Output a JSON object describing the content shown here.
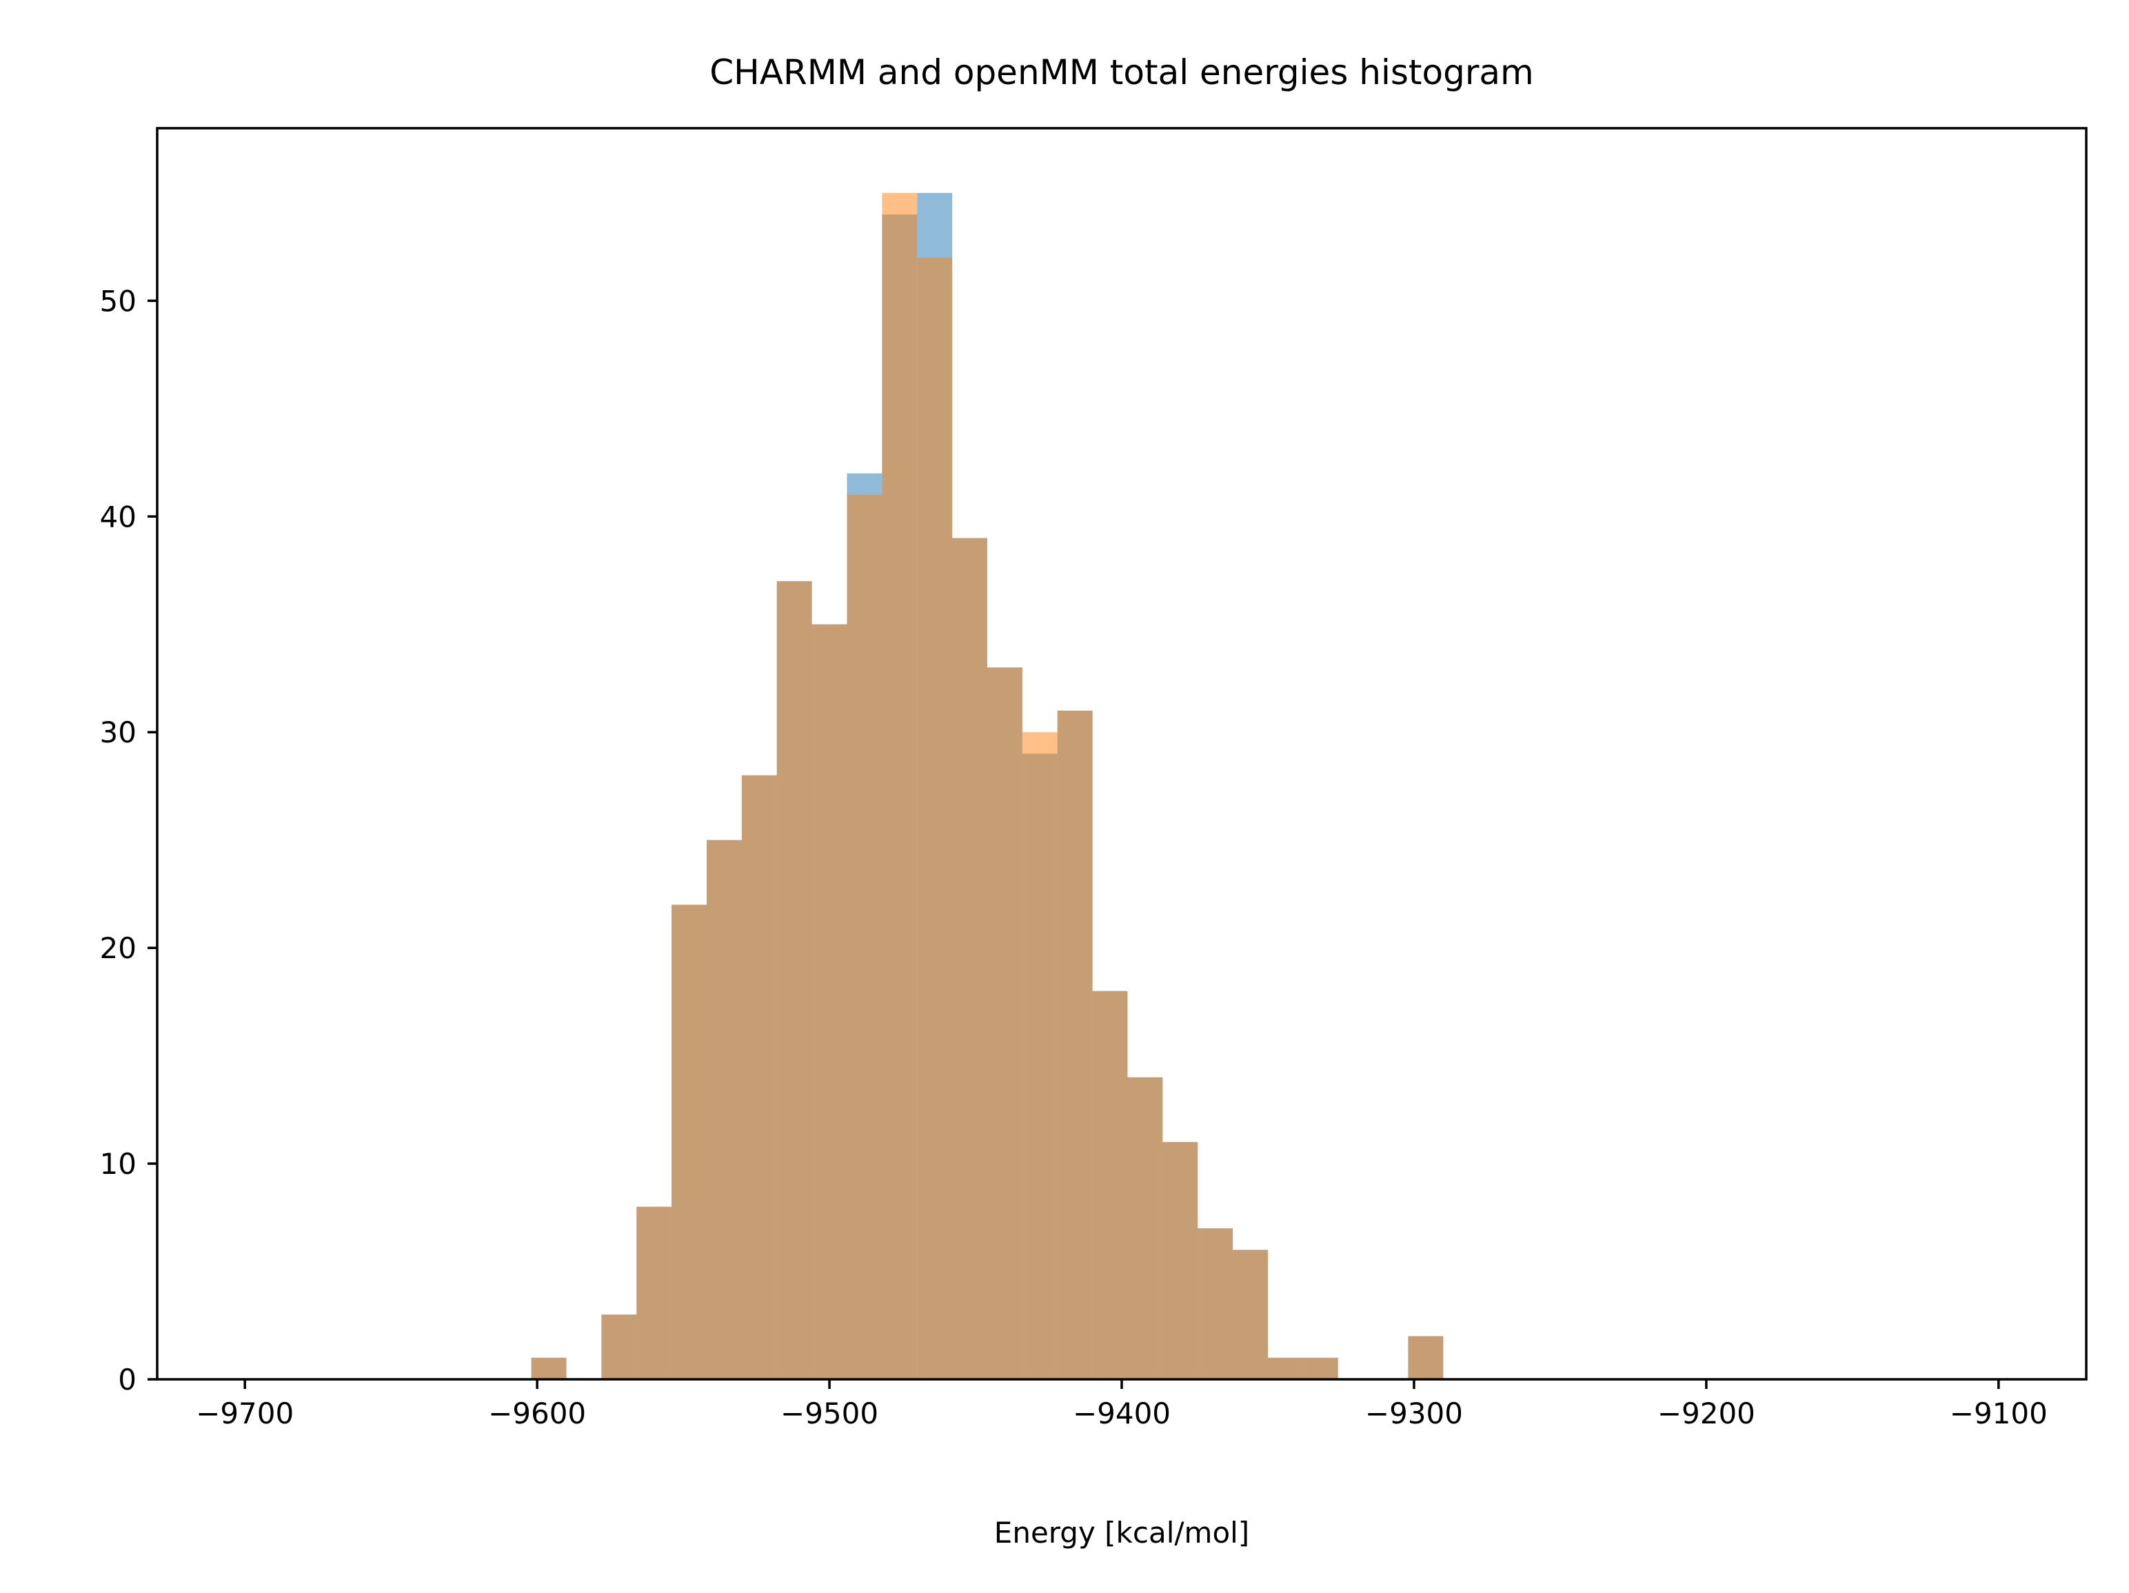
{
  "chart_data": {
    "type": "bar",
    "title": "CHARMM and openMM total energies histogram",
    "xlabel": "Energy [kcal/mol]",
    "ylabel": "",
    "xlim": [
      -9730,
      -9070
    ],
    "ylim": [
      0,
      58
    ],
    "xticks": [
      -9700,
      -9600,
      -9500,
      -9400,
      -9300,
      -9200,
      -9100
    ],
    "xtick_labels": [
      "−9700",
      "−9600",
      "−9500",
      "−9400",
      "−9300",
      "−9200",
      "−9100"
    ],
    "yticks": [
      0,
      10,
      20,
      30,
      40,
      50
    ],
    "ytick_labels": [
      "0",
      "10",
      "20",
      "30",
      "40",
      "50"
    ],
    "grid": false,
    "bin_edges": [
      -9602,
      -9590,
      -9578,
      -9566,
      -9554,
      -9542,
      -9530,
      -9518,
      -9506,
      -9494,
      -9482,
      -9470,
      -9458,
      -9446,
      -9434,
      -9422,
      -9410,
      -9398,
      -9386,
      -9374,
      -9362,
      -9350,
      -9338,
      -9326,
      -9314,
      -9302,
      -9290
    ],
    "series": [
      {
        "color": "#1f77b4",
        "opacity": 0.5,
        "values": [
          1,
          0,
          3,
          8,
          22,
          25,
          28,
          37,
          35,
          42,
          54,
          55,
          39,
          33,
          29,
          31,
          18,
          14,
          11,
          7,
          6,
          1,
          1,
          0,
          0,
          2
        ]
      },
      {
        "color": "#ff7f0e",
        "opacity": 0.5,
        "values": [
          1,
          0,
          3,
          8,
          22,
          25,
          28,
          37,
          35,
          41,
          55,
          52,
          39,
          33,
          30,
          31,
          18,
          14,
          11,
          7,
          6,
          1,
          1,
          0,
          0,
          2
        ]
      }
    ]
  }
}
